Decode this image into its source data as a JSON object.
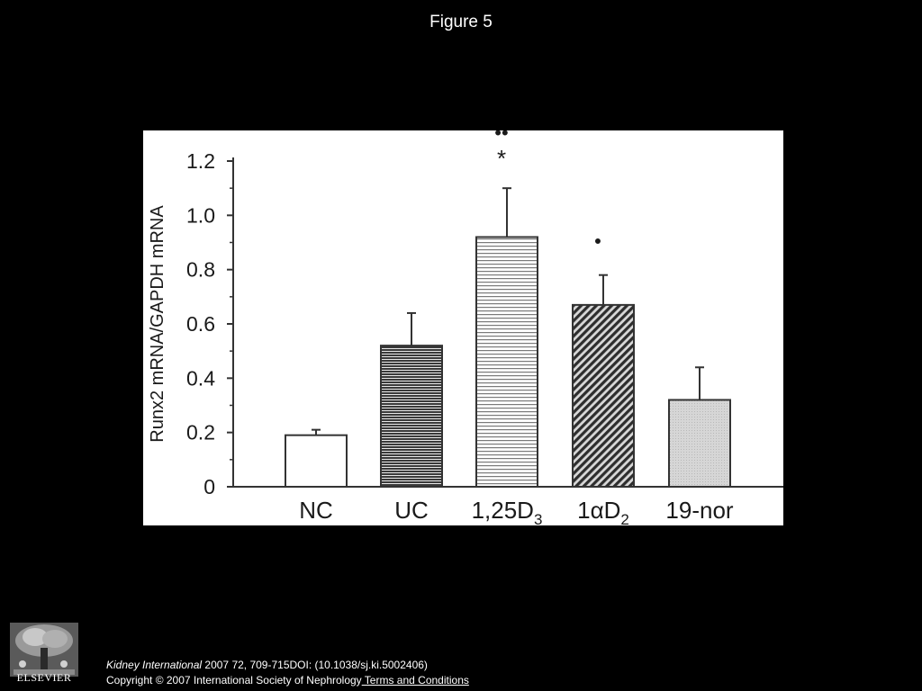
{
  "slide": {
    "title": "Figure 5"
  },
  "citation": {
    "journal": "Kidney International",
    "details": " 2007 72, 709-715DOI: (10.1038/sj.ki.5002406)",
    "copyright": "Copyright © 2007 International Society of Nephrology",
    "terms_link": " Terms and Conditions"
  },
  "publisher": {
    "logo_text": "ELSEVIER",
    "logo_icon": "tree-icon"
  },
  "chart_data": {
    "type": "bar",
    "title": "",
    "xlabel": "",
    "ylabel": "Runx2 mRNA/GAPDH mRNA",
    "ylim": [
      0,
      1.2
    ],
    "yticks": [
      0,
      0.2,
      0.4,
      0.6,
      0.8,
      1.0,
      1.2
    ],
    "ytick_labels": [
      "0",
      "0.2",
      "0.4",
      "0.6",
      "0.8",
      "1.0",
      "1.2"
    ],
    "categories": [
      {
        "label": "NC",
        "sub": ""
      },
      {
        "label": "UC",
        "sub": ""
      },
      {
        "label": "1,25D",
        "sub": "3"
      },
      {
        "label": "1αD",
        "sub": "2"
      },
      {
        "label": "19-nor",
        "sub": ""
      }
    ],
    "values": [
      0.19,
      0.52,
      0.92,
      0.67,
      0.32
    ],
    "errors": [
      0.02,
      0.12,
      0.18,
      0.11,
      0.12
    ],
    "patterns": [
      "none",
      "horizontal-dense",
      "horizontal-light",
      "diagonal",
      "dotted-gray"
    ],
    "annotations": [
      {
        "category": 2,
        "symbols": [
          "••",
          "*"
        ]
      },
      {
        "category": 3,
        "symbols": [
          "•"
        ]
      }
    ],
    "grid": false
  }
}
